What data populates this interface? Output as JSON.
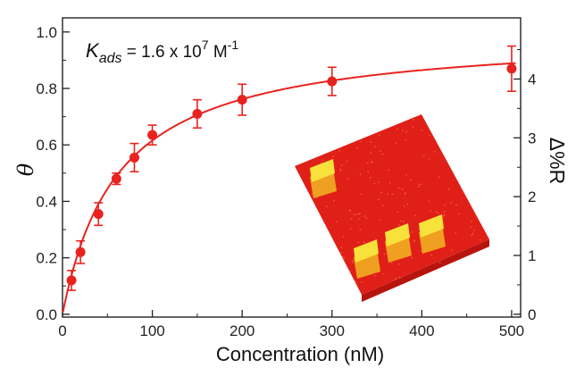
{
  "chart_data": {
    "type": "scatter",
    "xlabel": "Concentration (nM)",
    "ylabel": "θ",
    "y2label": "Δ%R",
    "xlim": [
      0,
      510
    ],
    "ylim": [
      -0.01,
      1.05
    ],
    "y2lim": [
      -0.048,
      5.04
    ],
    "x_ticks": [
      "0",
      "100",
      "200",
      "300",
      "400",
      "500"
    ],
    "y_ticks": [
      "0.0",
      "0.2",
      "0.4",
      "0.6",
      "0.8",
      "1.0"
    ],
    "y2_ticks": [
      "0",
      "1",
      "2",
      "3",
      "4"
    ],
    "annotation": {
      "prefix_italic": "K",
      "subscript": "ads",
      "middle": " = 1.6 x 10",
      "superscript": "7",
      "unit": " M",
      "unit_superscript": "-1"
    },
    "series": [
      {
        "color": "#e8231f",
        "points": [
          {
            "x": 10,
            "y": 0.12,
            "err": 0.035
          },
          {
            "x": 20,
            "y": 0.22,
            "err": 0.04
          },
          {
            "x": 40,
            "y": 0.355,
            "err": 0.04
          },
          {
            "x": 60,
            "y": 0.48,
            "err": 0.02
          },
          {
            "x": 80,
            "y": 0.555,
            "err": 0.05
          },
          {
            "x": 100,
            "y": 0.635,
            "err": 0.035
          },
          {
            "x": 150,
            "y": 0.71,
            "err": 0.05
          },
          {
            "x": 200,
            "y": 0.76,
            "err": 0.055
          },
          {
            "x": 300,
            "y": 0.825,
            "err": 0.05
          },
          {
            "x": 500,
            "y": 0.87,
            "err": 0.08
          }
        ]
      }
    ],
    "fit": {
      "type": "langmuir",
      "theta_max": 1.0,
      "K_nM": 0.016,
      "color": "#e8231f"
    },
    "inset": {
      "description_colors": {
        "base": "#e02018",
        "feature_top": "#f6e23a",
        "feature_side": "#f0a020"
      }
    }
  }
}
